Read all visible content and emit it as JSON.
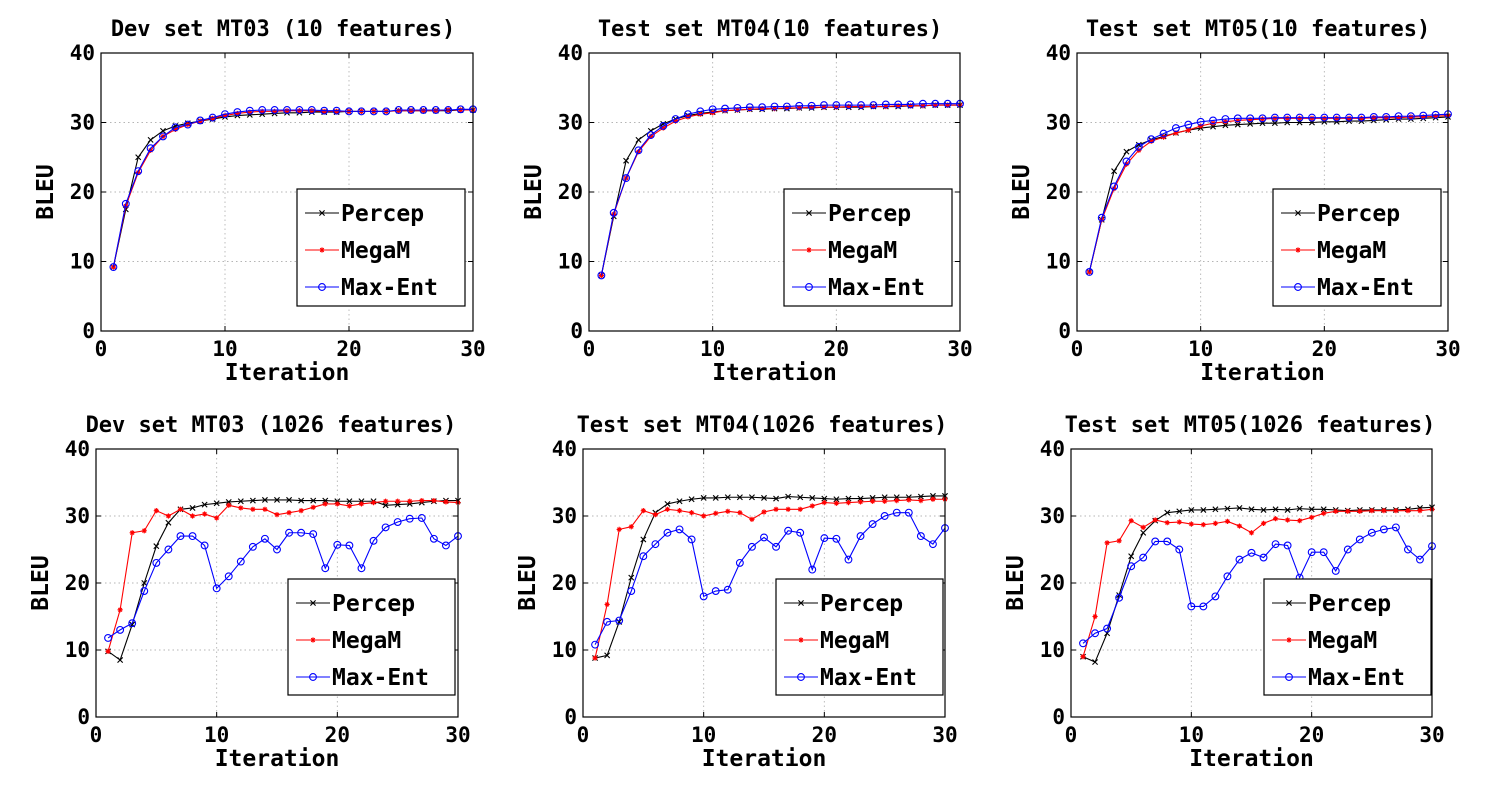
{
  "chart_data": [
    {
      "type": "line",
      "title": "Dev set MT03 (10 features)",
      "xlabel": "Iteration",
      "ylabel": "BLEU",
      "xlim": [
        0,
        30
      ],
      "ylim": [
        0,
        40
      ],
      "xticks": [
        "0",
        "10",
        "20",
        "30"
      ],
      "yticks": [
        "0",
        "10",
        "20",
        "30",
        "40"
      ],
      "grid": true,
      "legend_position": "lower-right",
      "x": [
        1,
        2,
        3,
        4,
        5,
        6,
        7,
        8,
        9,
        10,
        11,
        12,
        13,
        14,
        15,
        16,
        17,
        18,
        19,
        20,
        21,
        22,
        23,
        24,
        25,
        26,
        27,
        28,
        29,
        30
      ],
      "series": [
        {
          "name": "Percep",
          "color": "#000000",
          "marker": "x",
          "values": [
            9.2,
            17.5,
            25.0,
            27.5,
            28.8,
            29.5,
            29.9,
            30.2,
            30.5,
            30.8,
            31.0,
            31.1,
            31.2,
            31.3,
            31.4,
            31.4,
            31.5,
            31.5,
            31.5,
            31.6,
            31.6,
            31.6,
            31.6,
            31.7,
            31.7,
            31.7,
            31.7,
            31.7,
            31.8,
            31.8
          ]
        },
        {
          "name": "MegaM",
          "color": "#ff0000",
          "marker": "*",
          "values": [
            9.2,
            18.0,
            22.8,
            26.0,
            28.0,
            29.0,
            29.7,
            30.2,
            30.6,
            31.0,
            31.3,
            31.5,
            31.6,
            31.6,
            31.7,
            31.7,
            31.7,
            31.6,
            31.6,
            31.6,
            31.6,
            31.6,
            31.6,
            31.7,
            31.7,
            31.7,
            31.7,
            31.8,
            31.8,
            31.8
          ]
        },
        {
          "name": "Max-Ent",
          "color": "#0000ff",
          "marker": "o",
          "values": [
            9.2,
            18.3,
            23.0,
            26.3,
            28.0,
            29.3,
            29.7,
            30.3,
            30.7,
            31.2,
            31.5,
            31.7,
            31.8,
            31.8,
            31.8,
            31.8,
            31.8,
            31.7,
            31.7,
            31.6,
            31.6,
            31.6,
            31.6,
            31.8,
            31.8,
            31.8,
            31.8,
            31.8,
            31.9,
            31.9
          ]
        }
      ]
    },
    {
      "type": "line",
      "title": "Test set MT04(10 features)",
      "xlabel": "Iteration",
      "ylabel": "BLEU",
      "xlim": [
        0,
        30
      ],
      "ylim": [
        0,
        40
      ],
      "xticks": [
        "0",
        "10",
        "20",
        "30"
      ],
      "yticks": [
        "0",
        "10",
        "20",
        "30",
        "40"
      ],
      "grid": true,
      "legend_position": "lower-right",
      "x": [
        1,
        2,
        3,
        4,
        5,
        6,
        7,
        8,
        9,
        10,
        11,
        12,
        13,
        14,
        15,
        16,
        17,
        18,
        19,
        20,
        21,
        22,
        23,
        24,
        25,
        26,
        27,
        28,
        29,
        30
      ],
      "series": [
        {
          "name": "Percep",
          "color": "#000000",
          "marker": "x",
          "values": [
            8.0,
            16.5,
            24.5,
            27.5,
            28.8,
            29.8,
            30.5,
            31.0,
            31.3,
            31.5,
            31.7,
            31.8,
            31.9,
            31.9,
            32.0,
            32.0,
            32.1,
            32.1,
            32.2,
            32.2,
            32.2,
            32.2,
            32.3,
            32.3,
            32.3,
            32.4,
            32.4,
            32.5,
            32.5,
            32.5
          ]
        },
        {
          "name": "MegaM",
          "color": "#ff0000",
          "marker": "*",
          "values": [
            8.0,
            16.8,
            22.0,
            25.8,
            28.0,
            29.2,
            30.2,
            30.8,
            31.2,
            31.4,
            31.7,
            31.8,
            31.9,
            32.0,
            32.0,
            32.1,
            32.1,
            32.2,
            32.2,
            32.2,
            32.3,
            32.3,
            32.3,
            32.3,
            32.4,
            32.4,
            32.4,
            32.5,
            32.5,
            32.5
          ]
        },
        {
          "name": "Max-Ent",
          "color": "#0000ff",
          "marker": "o",
          "values": [
            8.0,
            17.0,
            22.0,
            26.0,
            28.2,
            29.5,
            30.5,
            31.2,
            31.6,
            31.9,
            32.0,
            32.1,
            32.2,
            32.2,
            32.3,
            32.3,
            32.4,
            32.4,
            32.5,
            32.5,
            32.5,
            32.5,
            32.5,
            32.6,
            32.6,
            32.6,
            32.7,
            32.7,
            32.7,
            32.7
          ]
        }
      ]
    },
    {
      "type": "line",
      "title": "Test set MT05(10 features)",
      "xlabel": "Iteration",
      "ylabel": "BLEU",
      "xlim": [
        0,
        30
      ],
      "ylim": [
        0,
        40
      ],
      "xticks": [
        "0",
        "10",
        "20",
        "30"
      ],
      "yticks": [
        "0",
        "10",
        "20",
        "30",
        "40"
      ],
      "grid": true,
      "legend_position": "lower-right",
      "x": [
        1,
        2,
        3,
        4,
        5,
        6,
        7,
        8,
        9,
        10,
        11,
        12,
        13,
        14,
        15,
        16,
        17,
        18,
        19,
        20,
        21,
        22,
        23,
        24,
        25,
        26,
        27,
        28,
        29,
        30
      ],
      "series": [
        {
          "name": "Percep",
          "color": "#000000",
          "marker": "x",
          "values": [
            8.5,
            16.0,
            23.0,
            25.8,
            26.8,
            27.5,
            28.0,
            28.5,
            28.9,
            29.2,
            29.4,
            29.6,
            29.7,
            29.8,
            29.9,
            29.9,
            30.0,
            30.0,
            30.0,
            30.1,
            30.1,
            30.2,
            30.2,
            30.3,
            30.4,
            30.5,
            30.5,
            30.6,
            30.7,
            30.8
          ]
        },
        {
          "name": "MegaM",
          "color": "#ff0000",
          "marker": "*",
          "values": [
            8.5,
            16.0,
            20.5,
            24.0,
            26.0,
            27.3,
            27.9,
            28.5,
            28.9,
            29.5,
            29.9,
            30.1,
            30.3,
            30.4,
            30.5,
            30.6,
            30.6,
            30.6,
            30.6,
            30.6,
            30.6,
            30.6,
            30.6,
            30.7,
            30.7,
            30.7,
            30.8,
            30.8,
            30.9,
            31.0
          ]
        },
        {
          "name": "Max-Ent",
          "color": "#0000ff",
          "marker": "o",
          "values": [
            8.5,
            16.3,
            20.8,
            24.4,
            26.5,
            27.6,
            28.4,
            29.2,
            29.7,
            30.1,
            30.3,
            30.5,
            30.6,
            30.6,
            30.6,
            30.7,
            30.7,
            30.7,
            30.7,
            30.7,
            30.7,
            30.7,
            30.7,
            30.8,
            30.8,
            30.9,
            30.9,
            31.0,
            31.1,
            31.2
          ]
        }
      ]
    },
    {
      "type": "line",
      "title": "Dev set MT03 (1026 features)",
      "xlabel": "Iteration",
      "ylabel": "BLEU",
      "xlim": [
        0,
        30
      ],
      "ylim": [
        0,
        40
      ],
      "xticks": [
        "0",
        "10",
        "20",
        "30"
      ],
      "yticks": [
        "0",
        "10",
        "20",
        "30",
        "40"
      ],
      "grid": true,
      "legend_position": "lower-right",
      "x": [
        1,
        2,
        3,
        4,
        5,
        6,
        7,
        8,
        9,
        10,
        11,
        12,
        13,
        14,
        15,
        16,
        17,
        18,
        19,
        20,
        21,
        22,
        23,
        24,
        25,
        26,
        27,
        28,
        29,
        30
      ],
      "series": [
        {
          "name": "Percep",
          "color": "#000000",
          "marker": "x",
          "values": [
            9.8,
            8.5,
            13.8,
            20.0,
            25.5,
            29.0,
            31.0,
            31.2,
            31.7,
            31.9,
            32.1,
            32.2,
            32.3,
            32.4,
            32.4,
            32.4,
            32.3,
            32.3,
            32.3,
            32.2,
            32.2,
            32.2,
            32.2,
            31.6,
            31.7,
            31.8,
            32.0,
            32.2,
            32.3,
            32.3
          ]
        },
        {
          "name": "MegaM",
          "color": "#ff0000",
          "marker": "*",
          "values": [
            9.8,
            16.0,
            27.5,
            27.8,
            30.8,
            30.0,
            31.0,
            30.0,
            30.3,
            29.7,
            31.6,
            31.2,
            31.0,
            31.0,
            30.2,
            30.5,
            30.8,
            31.3,
            31.8,
            31.8,
            31.5,
            31.8,
            32.0,
            32.2,
            32.2,
            32.2,
            32.3,
            32.3,
            32.1,
            32.0
          ]
        },
        {
          "name": "Max-Ent",
          "color": "#0000ff",
          "marker": "o",
          "values": [
            11.8,
            13.0,
            14.0,
            18.8,
            23.0,
            25.0,
            27.0,
            27.0,
            25.6,
            19.2,
            21.0,
            23.2,
            25.4,
            26.6,
            25.0,
            27.5,
            27.5,
            27.3,
            22.2,
            25.7,
            25.6,
            22.2,
            26.3,
            28.3,
            29.1,
            29.6,
            29.7,
            26.6,
            25.6,
            27.0
          ]
        }
      ]
    },
    {
      "type": "line",
      "title": "Test set MT04(1026 features)",
      "xlabel": "Iteration",
      "ylabel": "BLEU",
      "xlim": [
        0,
        30
      ],
      "ylim": [
        0,
        40
      ],
      "xticks": [
        "0",
        "10",
        "20",
        "30"
      ],
      "yticks": [
        "0",
        "10",
        "20",
        "30",
        "40"
      ],
      "grid": true,
      "legend_position": "lower-right",
      "x": [
        1,
        2,
        3,
        4,
        5,
        6,
        7,
        8,
        9,
        10,
        11,
        12,
        13,
        14,
        15,
        16,
        17,
        18,
        19,
        20,
        21,
        22,
        23,
        24,
        25,
        26,
        27,
        28,
        29,
        30
      ],
      "series": [
        {
          "name": "Percep",
          "color": "#000000",
          "marker": "x",
          "values": [
            8.8,
            9.2,
            14.2,
            20.8,
            26.5,
            30.5,
            31.8,
            32.2,
            32.5,
            32.7,
            32.7,
            32.8,
            32.8,
            32.8,
            32.7,
            32.6,
            32.9,
            32.8,
            32.7,
            32.6,
            32.5,
            32.6,
            32.6,
            32.7,
            32.8,
            32.8,
            32.8,
            32.9,
            33.0,
            33.0
          ]
        },
        {
          "name": "MegaM",
          "color": "#ff0000",
          "marker": "*",
          "values": [
            8.8,
            16.8,
            28.0,
            28.4,
            30.8,
            30.2,
            31.0,
            30.8,
            30.5,
            30.0,
            30.4,
            30.7,
            30.5,
            29.5,
            30.6,
            31.0,
            31.0,
            31.0,
            31.5,
            32.0,
            31.9,
            32.0,
            32.1,
            32.2,
            32.2,
            32.3,
            32.4,
            32.3,
            32.5,
            32.5
          ]
        },
        {
          "name": "Max-Ent",
          "color": "#0000ff",
          "marker": "o",
          "values": [
            10.8,
            14.2,
            14.4,
            18.8,
            24.0,
            25.8,
            27.5,
            28.0,
            26.5,
            18.0,
            18.8,
            19.0,
            23.0,
            25.4,
            26.8,
            25.4,
            27.8,
            27.5,
            22.0,
            26.7,
            26.6,
            23.5,
            27.0,
            28.8,
            30.0,
            30.5,
            30.5,
            27.0,
            25.8,
            28.2
          ]
        }
      ]
    },
    {
      "type": "line",
      "title": "Test set MT05(1026 features)",
      "xlabel": "Iteration",
      "ylabel": "BLEU",
      "xlim": [
        0,
        30
      ],
      "ylim": [
        0,
        40
      ],
      "xticks": [
        "0",
        "10",
        "20",
        "30"
      ],
      "yticks": [
        "0",
        "10",
        "20",
        "30",
        "40"
      ],
      "grid": true,
      "legend_position": "lower-right",
      "x": [
        1,
        2,
        3,
        4,
        5,
        6,
        7,
        8,
        9,
        10,
        11,
        12,
        13,
        14,
        15,
        16,
        17,
        18,
        19,
        20,
        21,
        22,
        23,
        24,
        25,
        26,
        27,
        28,
        29,
        30
      ],
      "series": [
        {
          "name": "Percep",
          "color": "#000000",
          "marker": "x",
          "values": [
            9.0,
            8.2,
            12.5,
            18.2,
            24.0,
            27.5,
            29.3,
            30.5,
            30.7,
            30.9,
            30.9,
            31.0,
            31.1,
            31.2,
            31.0,
            30.9,
            31.0,
            30.9,
            31.1,
            31.0,
            31.0,
            30.9,
            30.8,
            30.9,
            30.9,
            30.9,
            30.9,
            31.0,
            31.2,
            31.3
          ]
        },
        {
          "name": "MegaM",
          "color": "#ff0000",
          "marker": "*",
          "values": [
            9.0,
            15.0,
            26.0,
            26.3,
            29.3,
            28.3,
            29.4,
            29.0,
            29.1,
            28.8,
            28.7,
            28.9,
            29.2,
            28.5,
            27.5,
            28.9,
            29.6,
            29.4,
            29.3,
            29.8,
            30.4,
            30.7,
            30.7,
            30.7,
            30.8,
            30.8,
            30.8,
            30.8,
            30.8,
            31.0
          ]
        },
        {
          "name": "Max-Ent",
          "color": "#0000ff",
          "marker": "o",
          "values": [
            11.0,
            12.5,
            13.2,
            17.8,
            22.5,
            23.8,
            26.2,
            26.2,
            25.0,
            16.5,
            16.5,
            18.0,
            21.0,
            23.5,
            24.5,
            23.8,
            25.8,
            25.6,
            20.8,
            24.6,
            24.6,
            21.8,
            25.0,
            26.5,
            27.5,
            28.0,
            28.3,
            25.0,
            23.5,
            25.5
          ]
        }
      ]
    }
  ]
}
